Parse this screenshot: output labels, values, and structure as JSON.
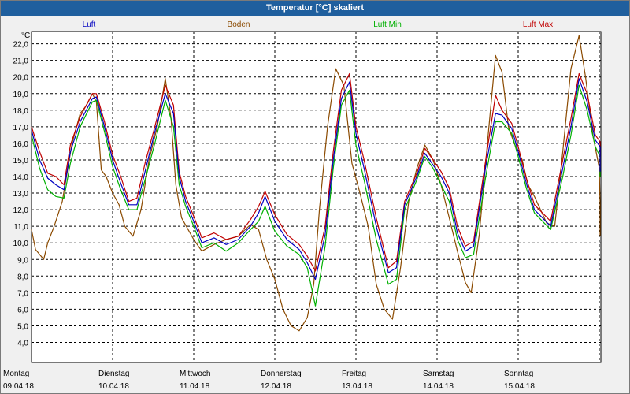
{
  "window": {
    "title": "Temperatur [°C] skaliert"
  },
  "colors": {
    "luft": "#0000c0",
    "boden": "#8b4a00",
    "luft_min": "#00b000",
    "luft_max": "#c00000",
    "grid": "#000000",
    "plot_bg": "#ffffff"
  },
  "chart_data": {
    "type": "line",
    "title": "Temperatur [°C] skaliert",
    "ylabel": "°C",
    "ylim": [
      4.0,
      23.0
    ],
    "xlim": [
      0,
      7.0
    ],
    "grid": true,
    "legend_position": "top",
    "yticks": [
      "4,0",
      "5,0",
      "6,0",
      "7,0",
      "8,0",
      "9,0",
      "10,0",
      "11,0",
      "12,0",
      "13,0",
      "14,0",
      "15,0",
      "16,0",
      "17,0",
      "18,0",
      "19,0",
      "20,0",
      "21,0",
      "22,0"
    ],
    "days": [
      {
        "weekday": "Montag",
        "date": "09.04.18"
      },
      {
        "weekday": "Dienstag",
        "date": "10.04.18"
      },
      {
        "weekday": "Mittwoch",
        "date": "11.04.18"
      },
      {
        "weekday": "Donnerstag",
        "date": "12.04.18"
      },
      {
        "weekday": "Freitag",
        "date": "13.04.18"
      },
      {
        "weekday": "Samstag",
        "date": "14.04.18"
      },
      {
        "weekday": "Sonntag",
        "date": "15.04.18"
      }
    ],
    "series": [
      {
        "name": "Luft",
        "color": "#0000c0",
        "points": [
          [
            0.0,
            16.8
          ],
          [
            0.1,
            15.0
          ],
          [
            0.2,
            13.9
          ],
          [
            0.3,
            13.5
          ],
          [
            0.4,
            13.2
          ],
          [
            0.48,
            15.5
          ],
          [
            0.6,
            17.3
          ],
          [
            0.75,
            18.7
          ],
          [
            0.8,
            18.8
          ],
          [
            0.9,
            17.0
          ],
          [
            1.0,
            15.0
          ],
          [
            1.1,
            13.6
          ],
          [
            1.2,
            12.3
          ],
          [
            1.3,
            12.3
          ],
          [
            1.4,
            14.3
          ],
          [
            1.52,
            16.7
          ],
          [
            1.65,
            19.0
          ],
          [
            1.75,
            17.8
          ],
          [
            1.82,
            14.0
          ],
          [
            1.9,
            12.5
          ],
          [
            2.0,
            11.3
          ],
          [
            2.1,
            10.0
          ],
          [
            2.25,
            10.3
          ],
          [
            2.4,
            9.9
          ],
          [
            2.55,
            10.2
          ],
          [
            2.7,
            11.0
          ],
          [
            2.8,
            11.8
          ],
          [
            2.88,
            12.8
          ],
          [
            3.0,
            11.3
          ],
          [
            3.15,
            10.2
          ],
          [
            3.3,
            9.6
          ],
          [
            3.4,
            8.8
          ],
          [
            3.5,
            7.8
          ],
          [
            3.62,
            10.5
          ],
          [
            3.72,
            15.0
          ],
          [
            3.82,
            18.7
          ],
          [
            3.92,
            19.7
          ],
          [
            4.0,
            16.6
          ],
          [
            4.1,
            14.5
          ],
          [
            4.25,
            11.0
          ],
          [
            4.4,
            8.2
          ],
          [
            4.5,
            8.5
          ],
          [
            4.6,
            12.3
          ],
          [
            4.75,
            14.0
          ],
          [
            4.85,
            15.4
          ],
          [
            4.95,
            14.7
          ],
          [
            5.05,
            14.0
          ],
          [
            5.15,
            13.0
          ],
          [
            5.25,
            10.6
          ],
          [
            5.35,
            9.5
          ],
          [
            5.45,
            9.8
          ],
          [
            5.6,
            14.6
          ],
          [
            5.72,
            17.8
          ],
          [
            5.8,
            17.7
          ],
          [
            5.92,
            16.9
          ],
          [
            6.0,
            15.5
          ],
          [
            6.1,
            13.6
          ],
          [
            6.2,
            12.0
          ],
          [
            6.4,
            11.0
          ],
          [
            6.55,
            14.5
          ],
          [
            6.65,
            17.0
          ],
          [
            6.75,
            19.9
          ],
          [
            6.85,
            18.5
          ],
          [
            6.95,
            16.2
          ],
          [
            7.05,
            15.8
          ],
          [
            7.15,
            14.3
          ]
        ]
      },
      {
        "name": "Boden",
        "color": "#8b4a00",
        "points": [
          [
            0.0,
            10.8
          ],
          [
            0.05,
            9.6
          ],
          [
            0.1,
            9.3
          ],
          [
            0.15,
            9.0
          ],
          [
            0.2,
            10.0
          ],
          [
            0.28,
            11.0
          ],
          [
            0.38,
            12.5
          ],
          [
            0.5,
            16.0
          ],
          [
            0.6,
            17.8
          ],
          [
            0.68,
            18.3
          ],
          [
            0.75,
            19.0
          ],
          [
            0.8,
            18.5
          ],
          [
            0.86,
            14.4
          ],
          [
            0.92,
            14.0
          ],
          [
            1.0,
            13.0
          ],
          [
            1.08,
            12.3
          ],
          [
            1.15,
            11.0
          ],
          [
            1.25,
            10.4
          ],
          [
            1.35,
            12.0
          ],
          [
            1.45,
            15.0
          ],
          [
            1.55,
            17.0
          ],
          [
            1.65,
            19.9
          ],
          [
            1.72,
            17.5
          ],
          [
            1.78,
            13.5
          ],
          [
            1.85,
            11.5
          ],
          [
            2.0,
            10.2
          ],
          [
            2.1,
            9.5
          ],
          [
            2.25,
            9.9
          ],
          [
            2.4,
            10.2
          ],
          [
            2.55,
            10.4
          ],
          [
            2.7,
            11.1
          ],
          [
            2.8,
            10.8
          ],
          [
            2.9,
            9.0
          ],
          [
            3.0,
            7.8
          ],
          [
            3.1,
            6.0
          ],
          [
            3.2,
            5.0
          ],
          [
            3.3,
            4.7
          ],
          [
            3.4,
            5.5
          ],
          [
            3.48,
            7.5
          ],
          [
            3.55,
            12.0
          ],
          [
            3.65,
            17.0
          ],
          [
            3.75,
            20.5
          ],
          [
            3.85,
            19.5
          ],
          [
            3.95,
            14.8
          ],
          [
            4.05,
            13.0
          ],
          [
            4.15,
            11.0
          ],
          [
            4.25,
            7.5
          ],
          [
            4.35,
            6.0
          ],
          [
            4.45,
            5.4
          ],
          [
            4.55,
            8.5
          ],
          [
            4.65,
            12.5
          ],
          [
            4.75,
            14.5
          ],
          [
            4.85,
            15.9
          ],
          [
            4.95,
            15.0
          ],
          [
            5.05,
            13.5
          ],
          [
            5.15,
            11.5
          ],
          [
            5.25,
            9.5
          ],
          [
            5.35,
            7.6
          ],
          [
            5.42,
            7.0
          ],
          [
            5.52,
            10.5
          ],
          [
            5.62,
            16.0
          ],
          [
            5.72,
            21.3
          ],
          [
            5.8,
            20.3
          ],
          [
            5.88,
            17.0
          ],
          [
            5.95,
            16.0
          ],
          [
            6.05,
            15.0
          ],
          [
            6.12,
            13.5
          ],
          [
            6.2,
            12.8
          ],
          [
            6.35,
            11.2
          ],
          [
            6.45,
            11.0
          ],
          [
            6.55,
            15.5
          ],
          [
            6.65,
            20.5
          ],
          [
            6.75,
            22.5
          ],
          [
            6.83,
            20.0
          ],
          [
            6.92,
            16.5
          ],
          [
            7.0,
            14.5
          ],
          [
            7.1,
            12.3
          ],
          [
            7.2,
            11.5
          ],
          [
            7.28,
            10.4
          ]
        ]
      },
      {
        "name": "Luft Min",
        "color": "#00b000",
        "points": [
          [
            0.0,
            16.5
          ],
          [
            0.1,
            14.5
          ],
          [
            0.2,
            13.2
          ],
          [
            0.3,
            12.8
          ],
          [
            0.4,
            12.7
          ],
          [
            0.48,
            14.8
          ],
          [
            0.6,
            17.0
          ],
          [
            0.75,
            18.5
          ],
          [
            0.8,
            18.6
          ],
          [
            0.9,
            16.7
          ],
          [
            1.0,
            14.6
          ],
          [
            1.1,
            13.2
          ],
          [
            1.2,
            12.0
          ],
          [
            1.3,
            12.0
          ],
          [
            1.4,
            13.8
          ],
          [
            1.52,
            16.0
          ],
          [
            1.65,
            18.6
          ],
          [
            1.75,
            17.0
          ],
          [
            1.82,
            13.5
          ],
          [
            1.9,
            12.2
          ],
          [
            2.0,
            11.0
          ],
          [
            2.1,
            9.7
          ],
          [
            2.25,
            10.0
          ],
          [
            2.4,
            9.5
          ],
          [
            2.55,
            10.0
          ],
          [
            2.7,
            10.8
          ],
          [
            2.8,
            11.3
          ],
          [
            2.88,
            12.2
          ],
          [
            3.0,
            10.7
          ],
          [
            3.15,
            9.8
          ],
          [
            3.3,
            9.3
          ],
          [
            3.4,
            8.5
          ],
          [
            3.5,
            6.2
          ],
          [
            3.62,
            9.8
          ],
          [
            3.72,
            14.5
          ],
          [
            3.82,
            18.3
          ],
          [
            3.92,
            19.2
          ],
          [
            4.0,
            15.9
          ],
          [
            4.1,
            13.8
          ],
          [
            4.25,
            10.2
          ],
          [
            4.4,
            7.5
          ],
          [
            4.5,
            7.8
          ],
          [
            4.6,
            12.0
          ],
          [
            4.75,
            13.8
          ],
          [
            4.85,
            15.2
          ],
          [
            4.95,
            14.5
          ],
          [
            5.05,
            13.5
          ],
          [
            5.15,
            12.5
          ],
          [
            5.25,
            10.2
          ],
          [
            5.35,
            9.1
          ],
          [
            5.45,
            9.3
          ],
          [
            5.6,
            14.0
          ],
          [
            5.72,
            17.3
          ],
          [
            5.8,
            17.3
          ],
          [
            5.92,
            16.6
          ],
          [
            6.0,
            15.2
          ],
          [
            6.1,
            13.3
          ],
          [
            6.2,
            11.8
          ],
          [
            6.4,
            10.8
          ],
          [
            6.55,
            14.0
          ],
          [
            6.65,
            16.5
          ],
          [
            6.75,
            19.5
          ],
          [
            6.85,
            18.0
          ],
          [
            6.95,
            15.8
          ],
          [
            7.05,
            15.2
          ],
          [
            7.15,
            14.0
          ]
        ]
      },
      {
        "name": "Luft Max",
        "color": "#c00000",
        "points": [
          [
            0.0,
            17.0
          ],
          [
            0.1,
            15.5
          ],
          [
            0.2,
            14.2
          ],
          [
            0.3,
            14.0
          ],
          [
            0.4,
            13.5
          ],
          [
            0.48,
            15.9
          ],
          [
            0.6,
            17.6
          ],
          [
            0.75,
            19.0
          ],
          [
            0.8,
            19.0
          ],
          [
            0.9,
            17.3
          ],
          [
            1.0,
            15.3
          ],
          [
            1.1,
            14.0
          ],
          [
            1.2,
            12.5
          ],
          [
            1.3,
            12.7
          ],
          [
            1.4,
            14.8
          ],
          [
            1.52,
            17.0
          ],
          [
            1.65,
            19.5
          ],
          [
            1.75,
            18.3
          ],
          [
            1.82,
            14.3
          ],
          [
            1.9,
            12.8
          ],
          [
            2.0,
            11.6
          ],
          [
            2.1,
            10.3
          ],
          [
            2.25,
            10.6
          ],
          [
            2.4,
            10.2
          ],
          [
            2.55,
            10.4
          ],
          [
            2.7,
            11.4
          ],
          [
            2.8,
            12.2
          ],
          [
            2.88,
            13.1
          ],
          [
            3.0,
            11.7
          ],
          [
            3.15,
            10.5
          ],
          [
            3.3,
            9.9
          ],
          [
            3.4,
            9.2
          ],
          [
            3.5,
            8.3
          ],
          [
            3.62,
            11.0
          ],
          [
            3.72,
            15.5
          ],
          [
            3.82,
            19.2
          ],
          [
            3.92,
            20.2
          ],
          [
            4.0,
            17.0
          ],
          [
            4.1,
            15.0
          ],
          [
            4.25,
            11.5
          ],
          [
            4.4,
            8.5
          ],
          [
            4.5,
            8.9
          ],
          [
            4.6,
            12.5
          ],
          [
            4.75,
            14.2
          ],
          [
            4.85,
            15.7
          ],
          [
            4.95,
            15.0
          ],
          [
            5.05,
            14.3
          ],
          [
            5.15,
            13.3
          ],
          [
            5.25,
            11.0
          ],
          [
            5.35,
            9.8
          ],
          [
            5.45,
            10.1
          ],
          [
            5.6,
            15.0
          ],
          [
            5.72,
            18.9
          ],
          [
            5.8,
            18.0
          ],
          [
            5.92,
            17.2
          ],
          [
            6.0,
            15.8
          ],
          [
            6.1,
            13.9
          ],
          [
            6.2,
            12.3
          ],
          [
            6.4,
            11.3
          ],
          [
            6.55,
            15.0
          ],
          [
            6.65,
            17.5
          ],
          [
            6.75,
            20.2
          ],
          [
            6.85,
            19.0
          ],
          [
            6.95,
            16.5
          ],
          [
            7.05,
            16.1
          ],
          [
            7.15,
            14.5
          ]
        ]
      }
    ]
  }
}
